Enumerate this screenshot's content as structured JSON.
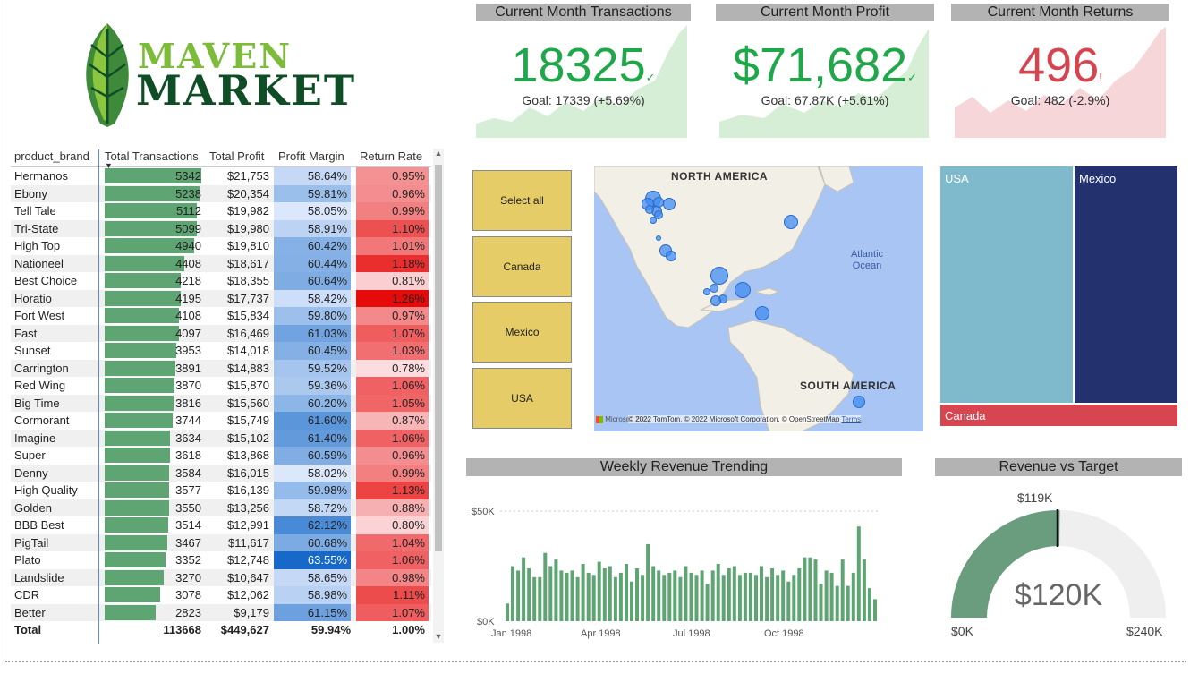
{
  "logo": {
    "line1": "MAVEN",
    "line2": "MARKET"
  },
  "colors": {
    "positive": "#1fa84a",
    "negative": "#d4454f",
    "bar": "#5fa574",
    "slicer": "#e6cc66",
    "treemap_usa": "#7fb9cc",
    "treemap_mexico": "#23326e",
    "treemap_canada": "#d64550",
    "gauge": "#6a9d7e"
  },
  "kpis": [
    {
      "title": "Current Month Transactions",
      "value": "18325",
      "status": "✓",
      "goal": "Goal: 17339 (+5.69%)"
    },
    {
      "title": "Current Month Profit",
      "value": "$71,682",
      "status": "✓",
      "goal": "Goal: 67.87K (+5.61%)"
    },
    {
      "title": "Current Month Returns",
      "value": "496",
      "status": "!",
      "goal": "Goal: 482 (-2.9%)"
    }
  ],
  "table": {
    "headers": {
      "brand": "product_brand",
      "transactions": "Total Transactions",
      "profit": "Total Profit",
      "margin": "Profit Margin",
      "return_rate": "Return Rate"
    },
    "rows": [
      {
        "brand": "Hermanos",
        "transactions": "5342",
        "profit": "$21,753",
        "margin": "58.64%",
        "return_rate": "0.95%"
      },
      {
        "brand": "Ebony",
        "transactions": "5238",
        "profit": "$20,354",
        "margin": "59.81%",
        "return_rate": "0.96%"
      },
      {
        "brand": "Tell Tale",
        "transactions": "5112",
        "profit": "$19,982",
        "margin": "58.05%",
        "return_rate": "0.99%"
      },
      {
        "brand": "Tri-State",
        "transactions": "5099",
        "profit": "$19,980",
        "margin": "58.91%",
        "return_rate": "1.10%"
      },
      {
        "brand": "High Top",
        "transactions": "4940",
        "profit": "$19,810",
        "margin": "60.42%",
        "return_rate": "1.01%"
      },
      {
        "brand": "Nationeel",
        "transactions": "4408",
        "profit": "$18,617",
        "margin": "60.44%",
        "return_rate": "1.18%"
      },
      {
        "brand": "Best Choice",
        "transactions": "4218",
        "profit": "$18,355",
        "margin": "60.64%",
        "return_rate": "0.81%"
      },
      {
        "brand": "Horatio",
        "transactions": "4195",
        "profit": "$17,737",
        "margin": "58.42%",
        "return_rate": "1.26%"
      },
      {
        "brand": "Fort West",
        "transactions": "4108",
        "profit": "$15,834",
        "margin": "59.80%",
        "return_rate": "0.97%"
      },
      {
        "brand": "Fast",
        "transactions": "4097",
        "profit": "$16,469",
        "margin": "61.03%",
        "return_rate": "1.07%"
      },
      {
        "brand": "Sunset",
        "transactions": "3953",
        "profit": "$14,018",
        "margin": "60.45%",
        "return_rate": "1.03%"
      },
      {
        "brand": "Carrington",
        "transactions": "3891",
        "profit": "$14,883",
        "margin": "59.52%",
        "return_rate": "0.78%"
      },
      {
        "brand": "Red Wing",
        "transactions": "3870",
        "profit": "$15,870",
        "margin": "59.36%",
        "return_rate": "1.06%"
      },
      {
        "brand": "Big Time",
        "transactions": "3816",
        "profit": "$15,560",
        "margin": "60.20%",
        "return_rate": "1.05%"
      },
      {
        "brand": "Cormorant",
        "transactions": "3744",
        "profit": "$15,749",
        "margin": "61.60%",
        "return_rate": "0.87%"
      },
      {
        "brand": "Imagine",
        "transactions": "3634",
        "profit": "$15,102",
        "margin": "61.40%",
        "return_rate": "1.06%"
      },
      {
        "brand": "Super",
        "transactions": "3618",
        "profit": "$13,868",
        "margin": "60.59%",
        "return_rate": "0.96%"
      },
      {
        "brand": "Denny",
        "transactions": "3584",
        "profit": "$16,015",
        "margin": "58.02%",
        "return_rate": "0.99%"
      },
      {
        "brand": "High Quality",
        "transactions": "3577",
        "profit": "$16,139",
        "margin": "59.98%",
        "return_rate": "1.13%"
      },
      {
        "brand": "Golden",
        "transactions": "3550",
        "profit": "$13,256",
        "margin": "58.72%",
        "return_rate": "0.88%"
      },
      {
        "brand": "BBB Best",
        "transactions": "3514",
        "profit": "$12,991",
        "margin": "62.12%",
        "return_rate": "0.80%"
      },
      {
        "brand": "PigTail",
        "transactions": "3467",
        "profit": "$11,617",
        "margin": "60.68%",
        "return_rate": "1.04%"
      },
      {
        "brand": "Plato",
        "transactions": "3352",
        "profit": "$12,748",
        "margin": "63.55%",
        "return_rate": "1.06%"
      },
      {
        "brand": "Landslide",
        "transactions": "3270",
        "profit": "$10,647",
        "margin": "58.65%",
        "return_rate": "0.98%"
      },
      {
        "brand": "CDR",
        "transactions": "3078",
        "profit": "$12,062",
        "margin": "58.98%",
        "return_rate": "1.11%"
      },
      {
        "brand": "Better",
        "transactions": "2823",
        "profit": "$9,179",
        "margin": "61.15%",
        "return_rate": "1.07%"
      }
    ],
    "total": {
      "label": "Total",
      "transactions": "113668",
      "profit": "$449,627",
      "margin": "59.94%",
      "return_rate": "1.00%"
    }
  },
  "slicer": {
    "options": [
      "Select all",
      "Canada",
      "Mexico",
      "USA"
    ]
  },
  "map": {
    "label_na": "NORTH AMERICA",
    "label_sa": "SOUTH AMERICA",
    "label_ocean": "Atlantic Ocean",
    "brand": "Microsoft Bing",
    "copyright": "© 2022 TomTom, © 2022 Microsoft Corporation, © OpenStreetMap",
    "terms": "Terms"
  },
  "treemap": {
    "usa": "USA",
    "mexico": "Mexico",
    "canada": "Canada"
  },
  "weekly": {
    "title": "Weekly Revenue Trending",
    "y_ticks": [
      "$50K",
      "$0K"
    ],
    "x_ticks": [
      "Jan 1998",
      "Apr 1998",
      "Jul 1998",
      "Oct 1998"
    ]
  },
  "gauge": {
    "title": "Revenue vs Target",
    "value": "$120K",
    "target": "$119K",
    "min": "$0K",
    "max": "$240K"
  },
  "chart_data": {
    "type": "bar",
    "title": "Weekly Revenue Trending",
    "ylim": [
      0,
      50000
    ],
    "x_ticks": [
      "Jan 1998",
      "Apr 1998",
      "Jul 1998",
      "Oct 1998"
    ],
    "values": [
      8000,
      25000,
      23000,
      29000,
      24000,
      20000,
      20000,
      31000,
      25000,
      28000,
      23000,
      22000,
      23000,
      20000,
      26000,
      22000,
      21000,
      27000,
      24000,
      25000,
      20000,
      22000,
      26000,
      18000,
      24000,
      21000,
      35000,
      25000,
      23000,
      21000,
      22000,
      23000,
      20000,
      25000,
      22000,
      21000,
      23000,
      17000,
      23000,
      26000,
      21000,
      24000,
      25000,
      21000,
      22000,
      22000,
      21000,
      25000,
      20000,
      24000,
      21000,
      23000,
      18000,
      21000,
      24000,
      29000,
      29000,
      28000,
      17000,
      23000,
      22000,
      16000,
      28000,
      16000,
      22000,
      43000,
      28000,
      15000,
      10000
    ]
  }
}
